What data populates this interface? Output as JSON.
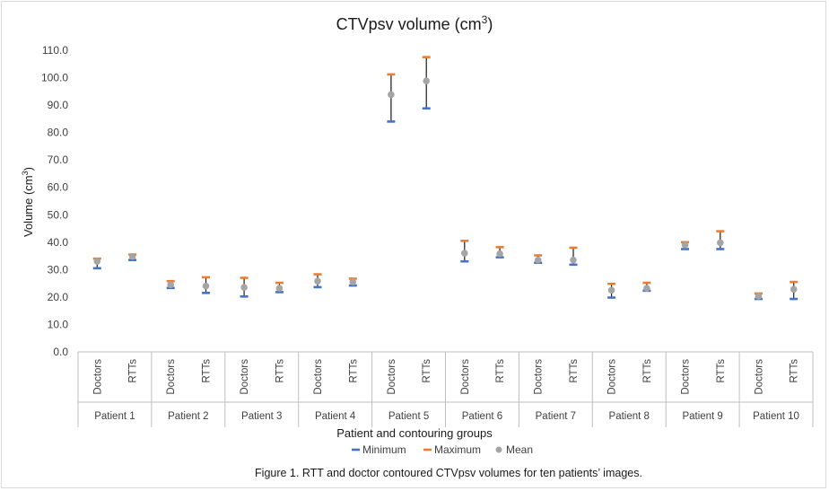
{
  "chart_data": {
    "type": "scatter",
    "title_main": "CTVpsv volume (cm",
    "title_sup": "3",
    "title_end": ")",
    "ylabel_main": "Volume (cm",
    "ylabel_sup": "3",
    "ylabel_end": ")",
    "xlabel": "Patient and contouring groups",
    "ylim": [
      0,
      110
    ],
    "yticks": [
      "0.0",
      "10.0",
      "20.0",
      "30.0",
      "40.0",
      "50.0",
      "60.0",
      "70.0",
      "80.0",
      "90.0",
      "100.0",
      "110.0"
    ],
    "groups": [
      {
        "name": "Patient 1",
        "subgroups": [
          {
            "name": "Doctors",
            "min": 30.5,
            "max": 34.0,
            "mean": 33.0
          },
          {
            "name": "RTTs",
            "min": 33.5,
            "max": 35.5,
            "mean": 34.8
          }
        ]
      },
      {
        "name": "Patient 2",
        "subgroups": [
          {
            "name": "Doctors",
            "min": 23.3,
            "max": 25.8,
            "mean": 24.5
          },
          {
            "name": "RTTs",
            "min": 21.5,
            "max": 27.2,
            "mean": 24.0
          }
        ]
      },
      {
        "name": "Patient 3",
        "subgroups": [
          {
            "name": "Doctors",
            "min": 20.2,
            "max": 27.0,
            "mean": 23.5
          },
          {
            "name": "RTTs",
            "min": 21.8,
            "max": 25.2,
            "mean": 23.2
          }
        ]
      },
      {
        "name": "Patient 4",
        "subgroups": [
          {
            "name": "Doctors",
            "min": 23.6,
            "max": 28.3,
            "mean": 25.8
          },
          {
            "name": "RTTs",
            "min": 24.2,
            "max": 26.7,
            "mean": 25.5
          }
        ]
      },
      {
        "name": "Patient 5",
        "subgroups": [
          {
            "name": "Doctors",
            "min": 84.0,
            "max": 101.2,
            "mean": 93.8
          },
          {
            "name": "RTTs",
            "min": 88.8,
            "max": 107.5,
            "mean": 98.8
          }
        ]
      },
      {
        "name": "Patient 6",
        "subgroups": [
          {
            "name": "Doctors",
            "min": 33.0,
            "max": 40.5,
            "mean": 36.0
          },
          {
            "name": "RTTs",
            "min": 34.5,
            "max": 38.2,
            "mean": 35.8
          }
        ]
      },
      {
        "name": "Patient 7",
        "subgroups": [
          {
            "name": "Doctors",
            "min": 32.5,
            "max": 35.2,
            "mean": 33.5
          },
          {
            "name": "RTTs",
            "min": 31.8,
            "max": 38.0,
            "mean": 33.5
          }
        ]
      },
      {
        "name": "Patient 8",
        "subgroups": [
          {
            "name": "Doctors",
            "min": 19.8,
            "max": 24.8,
            "mean": 22.5
          },
          {
            "name": "RTTs",
            "min": 22.3,
            "max": 25.2,
            "mean": 23.2
          }
        ]
      },
      {
        "name": "Patient 9",
        "subgroups": [
          {
            "name": "Doctors",
            "min": 37.5,
            "max": 40.0,
            "mean": 39.0
          },
          {
            "name": "RTTs",
            "min": 37.5,
            "max": 44.0,
            "mean": 39.8
          }
        ]
      },
      {
        "name": "Patient 10",
        "subgroups": [
          {
            "name": "Doctors",
            "min": 19.3,
            "max": 21.3,
            "mean": 20.3
          },
          {
            "name": "RTTs",
            "min": 19.3,
            "max": 25.5,
            "mean": 22.8
          }
        ]
      }
    ],
    "legend": [
      {
        "name": "Minimum",
        "marker": "dash",
        "color": "#4472c4"
      },
      {
        "name": "Maximum",
        "marker": "dash",
        "color": "#ed7d31"
      },
      {
        "name": "Mean",
        "marker": "circle",
        "color": "#a5a5a5"
      }
    ],
    "legend_position": "bottom",
    "grid": false,
    "colors": {
      "min": "#4472c4",
      "max": "#ed7d31",
      "mean": "#a5a5a5",
      "whisker": "#1a1a1a",
      "axis": "#bfbfbf"
    }
  },
  "caption": "Figure 1. RTT and doctor contoured CTVpsv volumes for ten patients’ images."
}
